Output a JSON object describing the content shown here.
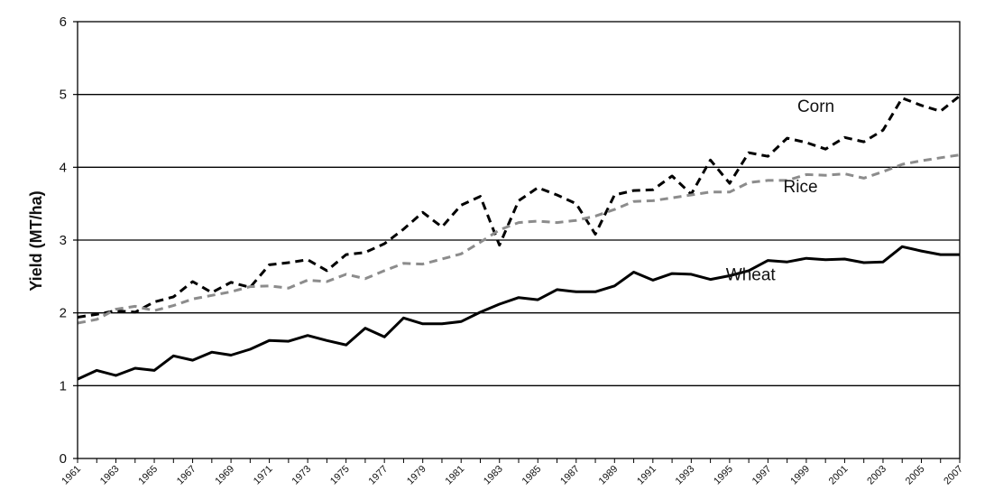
{
  "chart_data": {
    "type": "line",
    "title": "",
    "xlabel": "",
    "ylabel": "Yield (MT/ha)",
    "ylim": [
      0,
      6
    ],
    "yticks": [
      "0",
      "1",
      "2",
      "3",
      "4",
      "5",
      "6"
    ],
    "xlim": [
      1961,
      2007
    ],
    "xticks": [
      "1961",
      "1963",
      "1965",
      "1967",
      "1969",
      "1971",
      "1973",
      "1975",
      "1977",
      "1979",
      "1981",
      "1983",
      "1985",
      "1987",
      "1989",
      "1991",
      "1993",
      "1995",
      "1997",
      "1999",
      "2001",
      "2003",
      "2005",
      "2007"
    ],
    "grid": true,
    "x": [
      1961,
      1962,
      1963,
      1964,
      1965,
      1966,
      1967,
      1968,
      1969,
      1970,
      1971,
      1972,
      1973,
      1974,
      1975,
      1976,
      1977,
      1978,
      1979,
      1980,
      1981,
      1982,
      1983,
      1984,
      1985,
      1986,
      1987,
      1988,
      1989,
      1990,
      1991,
      1992,
      1993,
      1994,
      1995,
      1996,
      1997,
      1998,
      1999,
      2000,
      2001,
      2002,
      2003,
      2004,
      2005,
      2006,
      2007
    ],
    "series": [
      {
        "name": "Corn",
        "color": "#000000",
        "dash": "dashed",
        "values": [
          1.94,
          1.98,
          2.03,
          2.01,
          2.15,
          2.22,
          2.43,
          2.28,
          2.42,
          2.35,
          2.66,
          2.69,
          2.73,
          2.58,
          2.8,
          2.83,
          2.95,
          3.15,
          3.38,
          3.18,
          3.48,
          3.6,
          2.93,
          3.54,
          3.72,
          3.62,
          3.5,
          3.08,
          3.62,
          3.68,
          3.69,
          3.88,
          3.63,
          4.1,
          3.78,
          4.2,
          4.15,
          4.4,
          4.34,
          4.25,
          4.41,
          4.35,
          4.51,
          4.95,
          4.85,
          4.77,
          4.98
        ]
      },
      {
        "name": "Rice",
        "color": "#8c8c8c",
        "dash": "dashed",
        "values": [
          1.86,
          1.91,
          2.05,
          2.09,
          2.03,
          2.1,
          2.19,
          2.24,
          2.29,
          2.36,
          2.37,
          2.34,
          2.45,
          2.43,
          2.53,
          2.47,
          2.58,
          2.68,
          2.67,
          2.74,
          2.81,
          2.97,
          3.14,
          3.24,
          3.26,
          3.24,
          3.27,
          3.33,
          3.42,
          3.53,
          3.54,
          3.58,
          3.62,
          3.66,
          3.66,
          3.79,
          3.82,
          3.82,
          3.9,
          3.89,
          3.91,
          3.85,
          3.94,
          4.04,
          4.09,
          4.13,
          4.17
        ]
      },
      {
        "name": "Wheat",
        "color": "#000000",
        "dash": "solid",
        "values": [
          1.09,
          1.21,
          1.14,
          1.24,
          1.21,
          1.41,
          1.35,
          1.46,
          1.42,
          1.5,
          1.62,
          1.61,
          1.69,
          1.62,
          1.56,
          1.79,
          1.67,
          1.93,
          1.85,
          1.85,
          1.88,
          2.01,
          2.12,
          2.21,
          2.18,
          2.32,
          2.29,
          2.29,
          2.37,
          2.56,
          2.45,
          2.54,
          2.53,
          2.46,
          2.51,
          2.58,
          2.72,
          2.7,
          2.75,
          2.73,
          2.74,
          2.69,
          2.7,
          2.91,
          2.85,
          2.8,
          2.8
        ]
      }
    ],
    "annotations": [
      {
        "series": "Corn",
        "text": "Corn",
        "at_x": 1999.5,
        "at_y": 4.76
      },
      {
        "series": "Rice",
        "text": "Rice",
        "at_x": 1998.7,
        "at_y": 3.66
      },
      {
        "series": "Wheat",
        "text": "Wheat",
        "at_x": 1996.1,
        "at_y": 2.45
      }
    ]
  }
}
